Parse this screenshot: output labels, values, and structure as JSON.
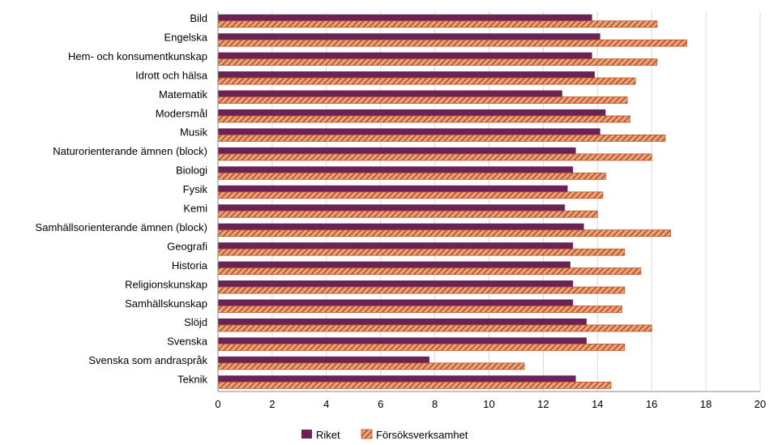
{
  "chart_data": {
    "type": "bar",
    "orientation": "horizontal",
    "categories": [
      "Bild",
      "Engelska",
      "Hem- och konsumentkunskap",
      "Idrott och hälsa",
      "Matematik",
      "Modersmål",
      "Musik",
      "Naturorienterande ämnen (block)",
      "Biologi",
      "Fysik",
      "Kemi",
      "Samhällsorienterande ämnen (block)",
      "Geografi",
      "Historia",
      "Religionskunskap",
      "Samhällskunskap",
      "Slöjd",
      "Svenska",
      "Svenska som andraspråk",
      "Teknik"
    ],
    "series": [
      {
        "name": "Riket",
        "color": "#6b2255",
        "pattern": "solid",
        "values": [
          13.8,
          14.1,
          13.8,
          13.9,
          12.7,
          14.3,
          14.1,
          13.2,
          13.1,
          12.9,
          12.8,
          13.5,
          13.1,
          13.0,
          13.1,
          13.1,
          13.6,
          13.6,
          7.8,
          13.2
        ]
      },
      {
        "name": "Försöksverksamhet",
        "color": "#c0522b",
        "pattern": "diagonal-hatch",
        "values": [
          16.2,
          17.3,
          16.2,
          15.4,
          15.1,
          15.2,
          16.5,
          16.0,
          14.3,
          14.2,
          14.0,
          16.7,
          15.0,
          15.6,
          15.0,
          14.9,
          16.0,
          15.0,
          11.3,
          14.5
        ]
      }
    ],
    "xlim": [
      0,
      20
    ],
    "xticks": [
      "0",
      "2",
      "4",
      "6",
      "8",
      "10",
      "12",
      "14",
      "16",
      "18",
      "20"
    ],
    "grid": true,
    "legend_position": "bottom",
    "title": "",
    "xlabel": "",
    "ylabel": ""
  }
}
